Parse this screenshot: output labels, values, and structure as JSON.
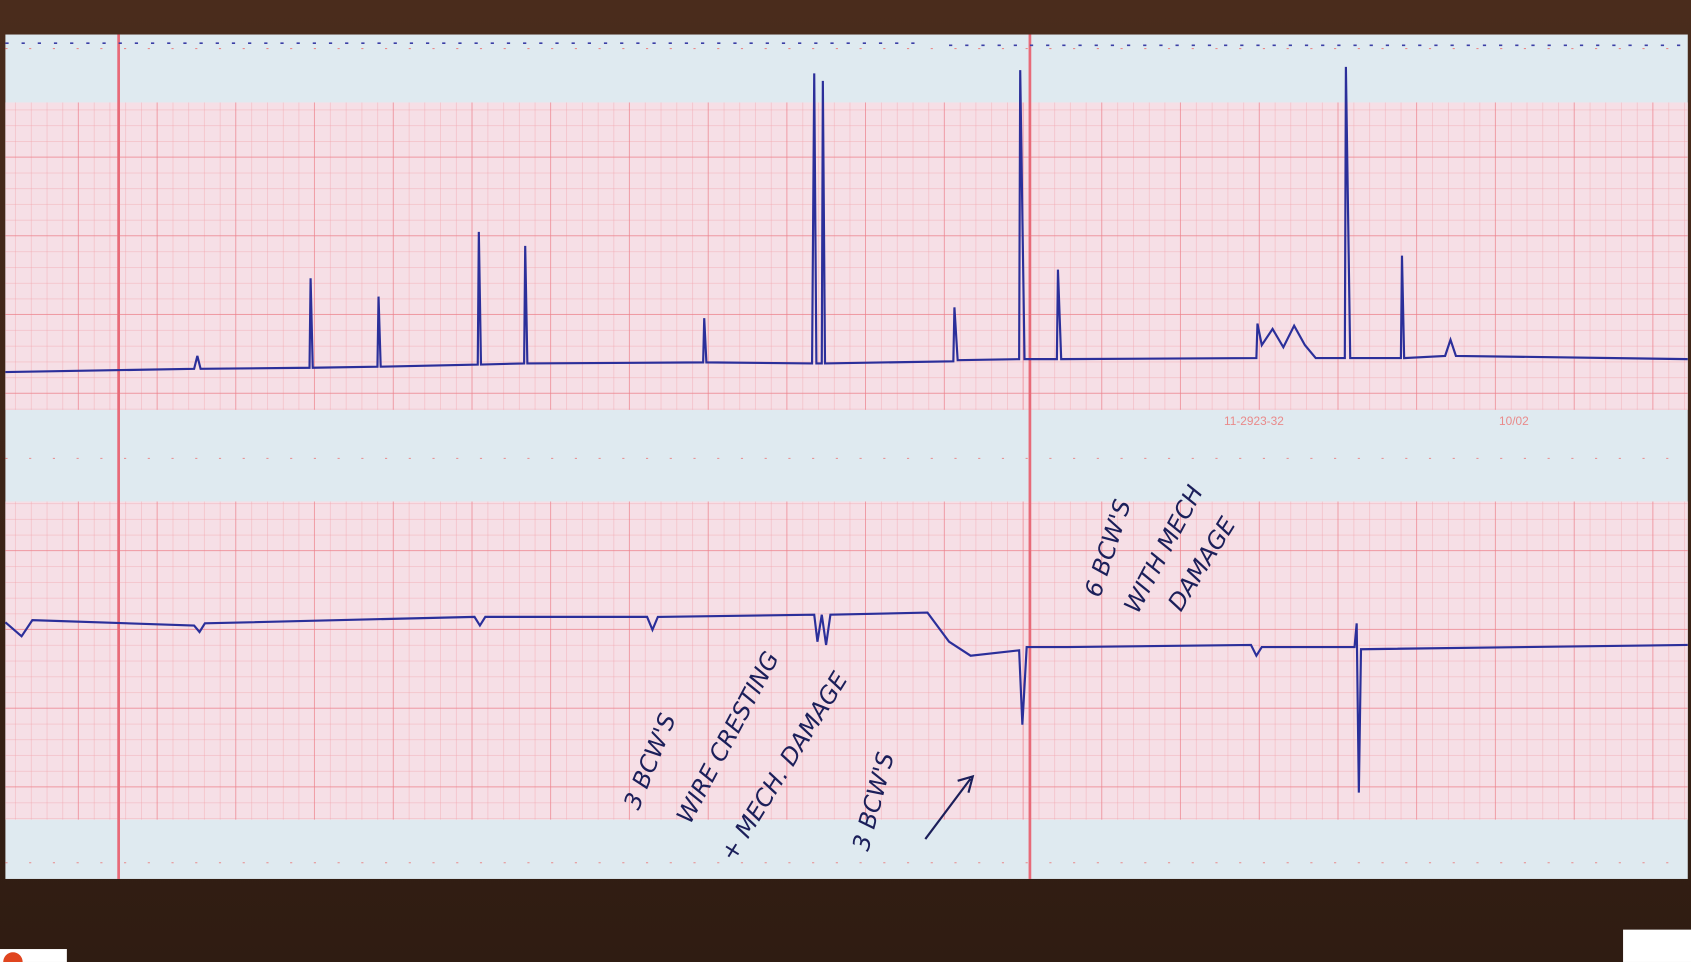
{
  "strip": {
    "serial": "11-2923-32",
    "code": "10/02"
  },
  "annotations": [
    "3 BCW'S",
    "WIRE CRESTING",
    "+ MECH. DAMAGE",
    "3 BCW'S",
    "6 BCW'S",
    "WITH MECH",
    "DAMAGE"
  ]
}
